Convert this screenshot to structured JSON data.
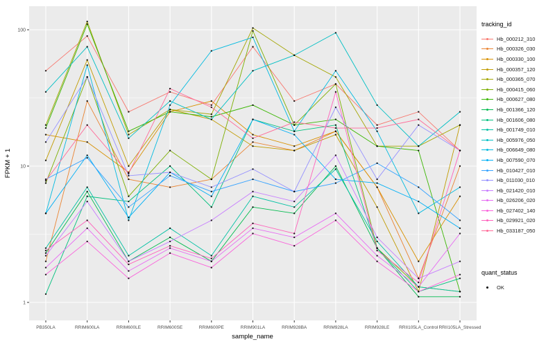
{
  "chart_data": {
    "type": "line",
    "title": "",
    "xlabel": "sample_name",
    "ylabel": "FPKM + 1",
    "y_scale": "log10",
    "y_ticks": [
      "1",
      "10",
      "100"
    ],
    "y_tick_values": [
      1,
      10,
      100
    ],
    "y_minor_values": [
      3.162,
      31.62
    ],
    "ylim": [
      0.75,
      145
    ],
    "grid": true,
    "panel_bg": "#EBEBEB",
    "grid_color": "#FFFFFF",
    "point_color": "#000000",
    "legend": {
      "position": "right",
      "tracking_title": "tracking_id",
      "quant_title": "quant_status",
      "quant_value": "OK"
    },
    "categories": [
      "PB350LA",
      "RRIM600LA",
      "RRIM600LE",
      "RRIM600SE",
      "RRIM600PE",
      "RRIM901LA",
      "RRIM928BA",
      "RRIM928LA",
      "RRIM928LE",
      "RRII105LA_Control",
      "RRII105LA_Stressed"
    ],
    "series": [
      {
        "name": "Hb_000212_310",
        "color": "#F8766D",
        "values": [
          50,
          90,
          25,
          35,
          28,
          75,
          30,
          40,
          20,
          25,
          13
        ]
      },
      {
        "name": "Hb_000326_030",
        "color": "#EA8331",
        "values": [
          2.0,
          30,
          8,
          7,
          8,
          15,
          13,
          18,
          7,
          1.5,
          10
        ]
      },
      {
        "name": "Hb_000330_100",
        "color": "#D89000",
        "values": [
          17,
          15,
          9,
          25,
          30,
          17,
          14,
          18,
          7,
          2.0,
          6
        ]
      },
      {
        "name": "Hb_000357_120",
        "color": "#C09B00",
        "values": [
          11,
          60,
          10,
          26,
          22,
          14,
          13,
          17,
          5,
          1.2,
          20
        ]
      },
      {
        "name": "Hb_000365_070",
        "color": "#A3A500",
        "values": [
          20,
          115,
          17,
          26,
          24,
          103,
          65,
          45,
          14,
          14,
          20
        ]
      },
      {
        "name": "Hb_000415_060",
        "color": "#7CAE00",
        "values": [
          7.5,
          45,
          6,
          13,
          8,
          98,
          20,
          40,
          2.5,
          1.3,
          1.2
        ]
      },
      {
        "name": "Hb_000627_080",
        "color": "#39B600",
        "values": [
          19,
          110,
          18,
          25,
          23,
          28,
          20,
          22,
          14,
          13,
          1.2
        ]
      },
      {
        "name": "Hb_001366_120",
        "color": "#00BB4E",
        "values": [
          2.3,
          6.5,
          2.0,
          3.0,
          2.0,
          5.0,
          4.5,
          10,
          2.5,
          1.1,
          1.1
        ]
      },
      {
        "name": "Hb_001606_080",
        "color": "#00BF7D",
        "values": [
          1.15,
          6.0,
          5.5,
          10,
          5.0,
          22,
          18,
          20,
          2.5,
          1.2,
          1.5
        ]
      },
      {
        "name": "Hb_001749_010",
        "color": "#00C1A3",
        "values": [
          2.5,
          7.0,
          2.2,
          3.5,
          2.2,
          6.0,
          5.0,
          9.5,
          2.8,
          1.3,
          1.2
        ]
      },
      {
        "name": "Hb_005976_050",
        "color": "#00BFC4",
        "values": [
          35,
          75,
          16,
          30,
          22,
          50,
          65,
          95,
          28,
          14,
          25
        ]
      },
      {
        "name": "Hb_006649_080",
        "color": "#00BAE0",
        "values": [
          4.5,
          55,
          4.0,
          28,
          70,
          88,
          18,
          50,
          18,
          4.5,
          7
        ]
      },
      {
        "name": "Hb_007590_070",
        "color": "#00B0F6",
        "values": [
          4.5,
          12,
          4.2,
          9.0,
          6.0,
          22,
          17,
          8.0,
          7.5,
          5.5,
          3.5
        ]
      },
      {
        "name": "Hb_010427_010",
        "color": "#35A2FF",
        "values": [
          8.0,
          11.5,
          5.0,
          8.5,
          6.5,
          8.0,
          6.5,
          7.5,
          10.5,
          7.0,
          4.0
        ]
      },
      {
        "name": "Hb_011030_010",
        "color": "#9590FF",
        "values": [
          15,
          45,
          8.5,
          9.0,
          7.0,
          9.5,
          6.5,
          27,
          8.0,
          20,
          13
        ]
      },
      {
        "name": "Hb_021420_010",
        "color": "#C77CFF",
        "values": [
          2.2,
          5.5,
          2.0,
          2.8,
          4.0,
          6.5,
          5.5,
          12,
          3.0,
          1.5,
          2.0
        ]
      },
      {
        "name": "Hb_026206_020",
        "color": "#E76BF3",
        "values": [
          1.8,
          3.5,
          1.7,
          2.5,
          2.0,
          3.5,
          3.0,
          4.5,
          2.2,
          1.3,
          3.2
        ]
      },
      {
        "name": "Hb_027402_140",
        "color": "#FA62DB",
        "values": [
          1.6,
          2.8,
          1.5,
          2.3,
          1.8,
          3.2,
          2.6,
          4.0,
          2.0,
          1.2,
          1.6
        ]
      },
      {
        "name": "Hb_029921_020",
        "color": "#FF62BC",
        "values": [
          2.4,
          4.0,
          1.9,
          2.6,
          2.1,
          3.8,
          3.2,
          35,
          2.4,
          1.4,
          13
        ]
      },
      {
        "name": "Hb_033187_050",
        "color": "#FF6A98",
        "values": [
          7.8,
          20,
          8.8,
          37,
          27,
          16,
          21,
          19,
          19,
          22,
          13
        ]
      }
    ]
  }
}
